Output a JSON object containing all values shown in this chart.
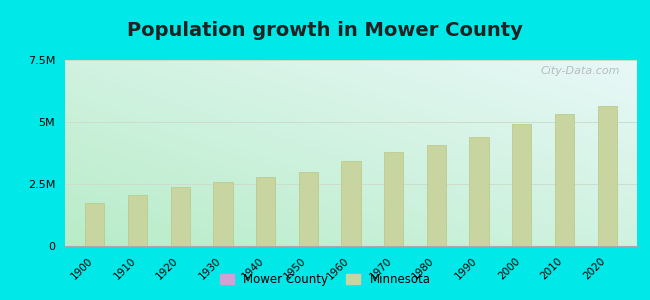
{
  "title": "Population growth in Mower County",
  "years": [
    1900,
    1910,
    1920,
    1930,
    1940,
    1950,
    1960,
    1970,
    1980,
    1990,
    2000,
    2010,
    2020
  ],
  "minnesota_values": [
    1750000,
    2075000,
    2387000,
    2564000,
    2792000,
    2982000,
    3414000,
    3805000,
    4076000,
    4376000,
    4919000,
    5304000,
    5640000
  ],
  "bar_color": "#c8d5a0",
  "bar_edge_color": "#b8c880",
  "ylim": [
    0,
    7500000
  ],
  "yticks": [
    0,
    2500000,
    5000000,
    7500000
  ],
  "ytick_labels": [
    "0",
    "2.5M",
    "5M",
    "7.5M"
  ],
  "background_outer": "#00e8e8",
  "background_plot_bottom_left": "#b8ecc8",
  "background_plot_top_right": "#e8f8f8",
  "grid_color": "#ccddcc",
  "title_fontsize": 14,
  "title_color": "#222222",
  "legend_county_color": "#d4a0d4",
  "legend_mn_color": "#c8d5a0",
  "watermark": "City-Data.com"
}
